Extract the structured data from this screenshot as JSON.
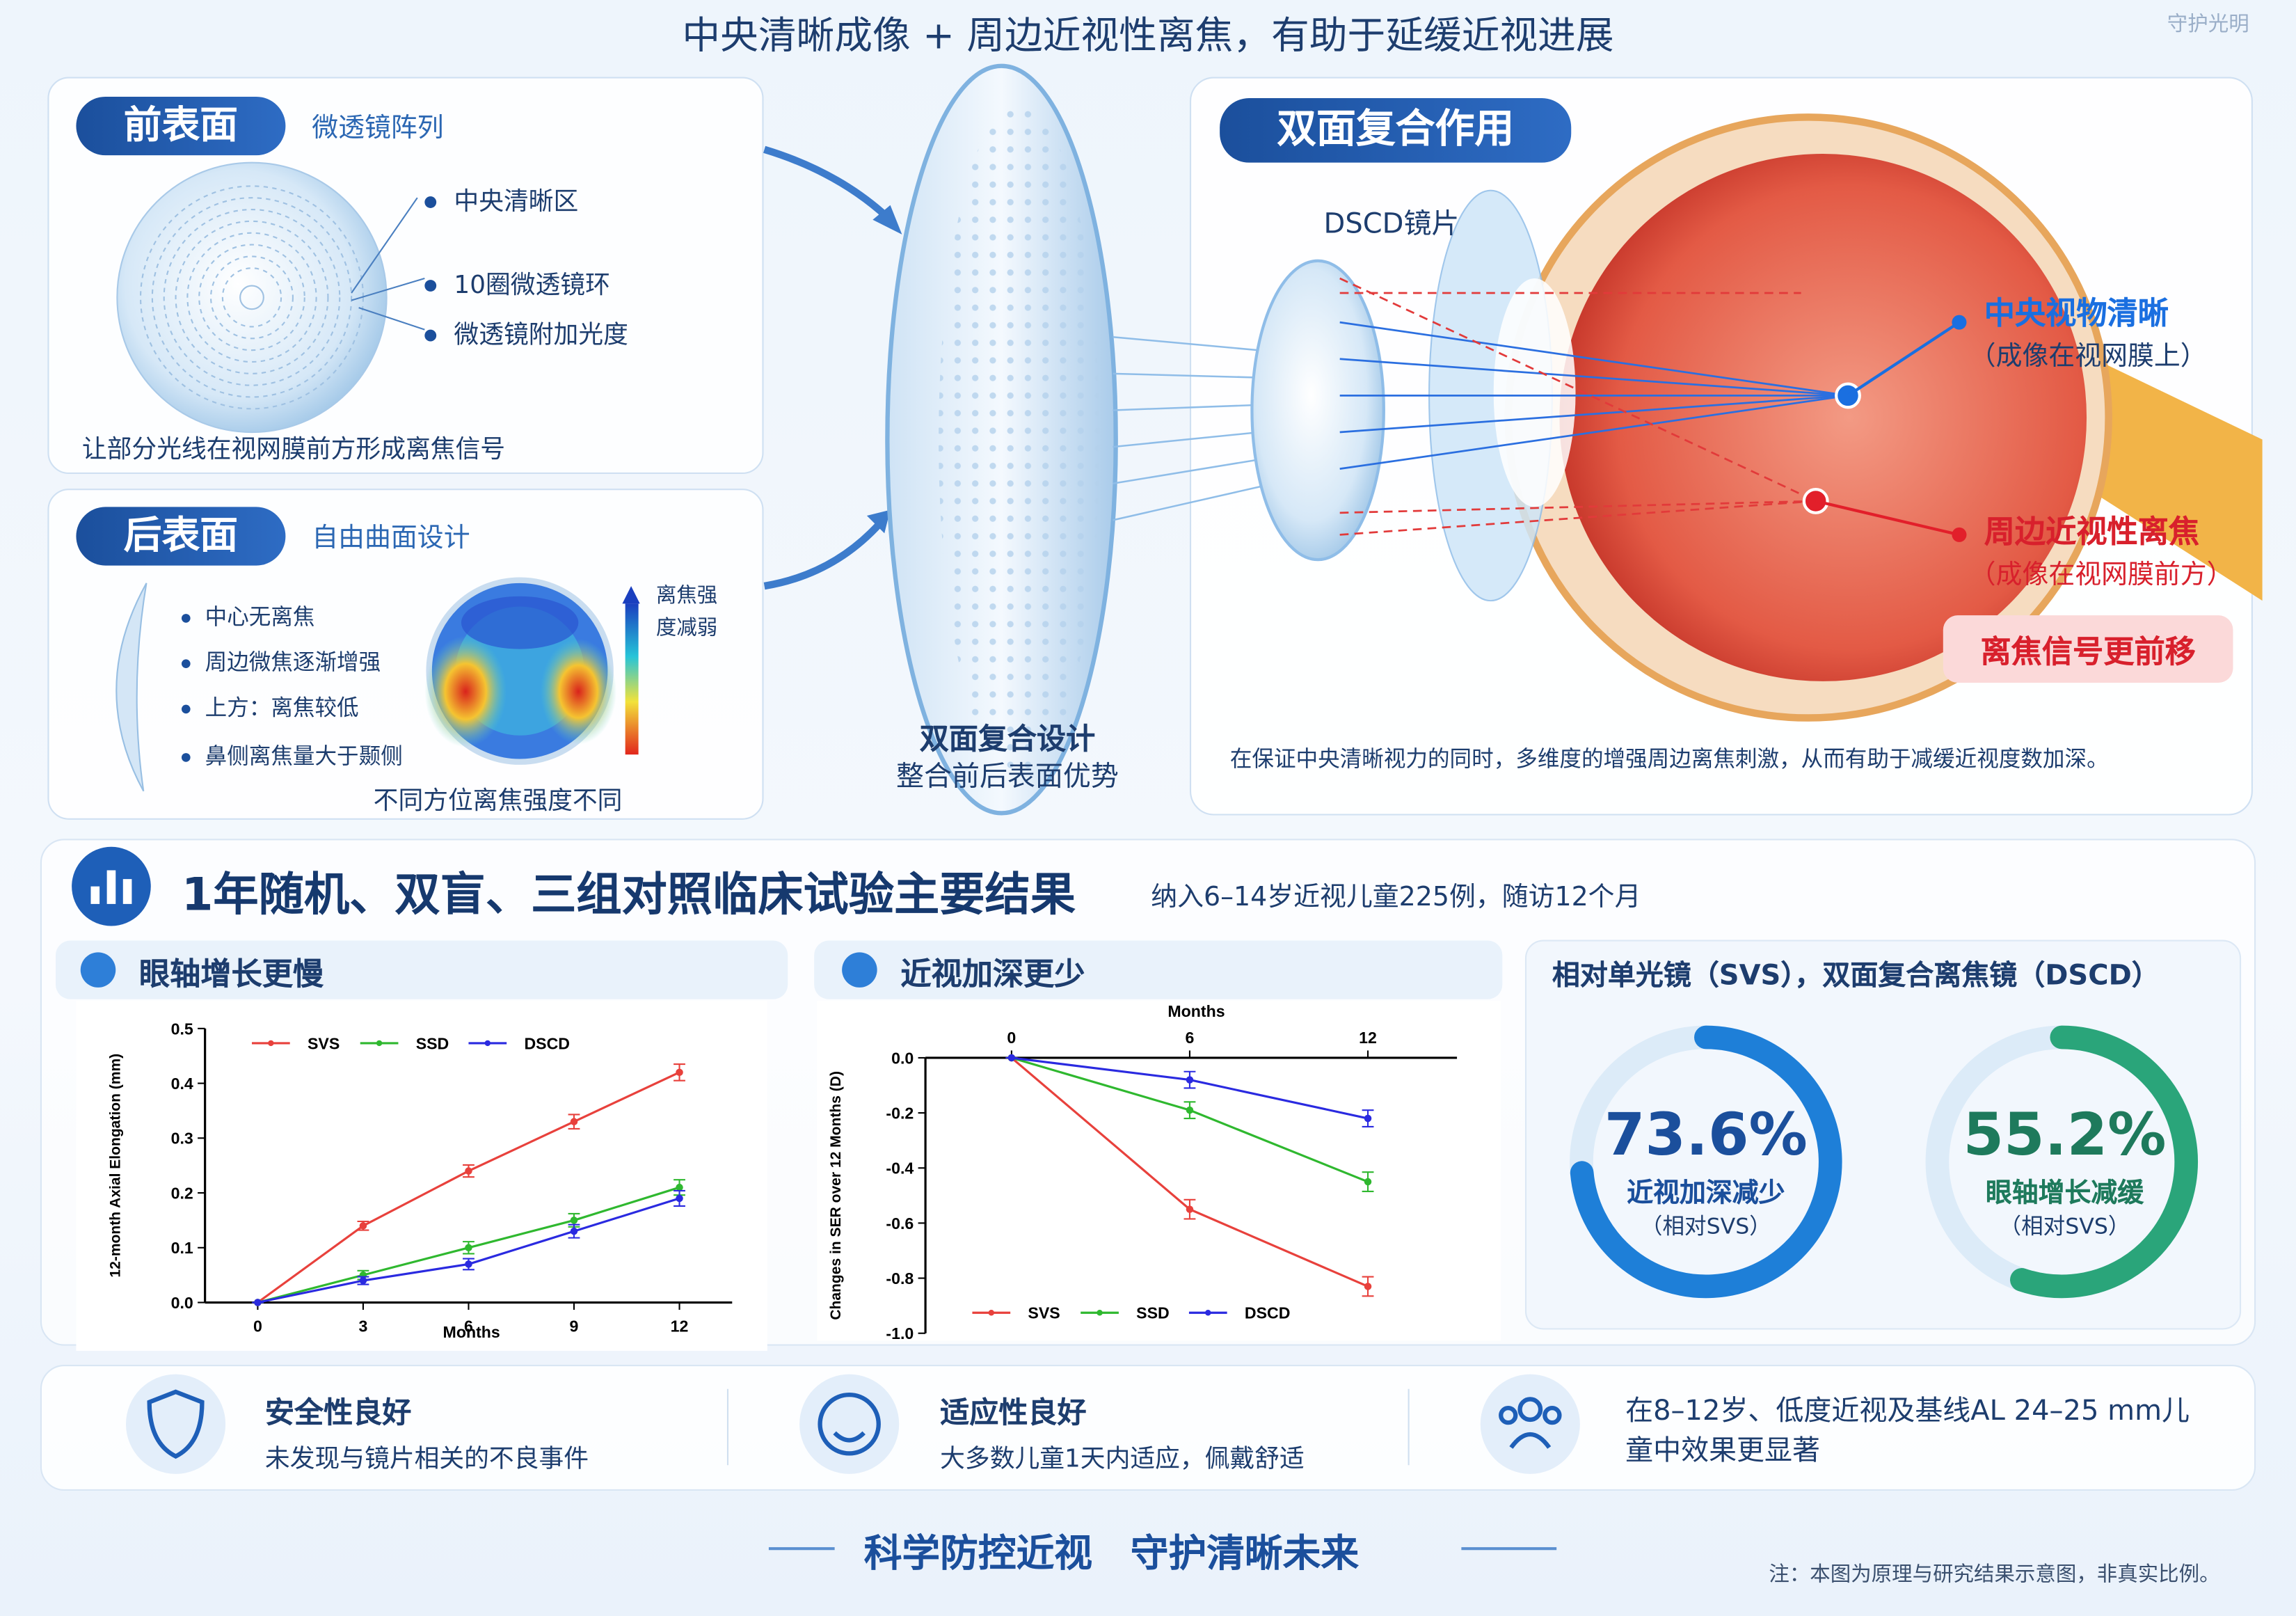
{
  "header": {
    "title": "中央清晰成像 + 周边近视性离焦，有助于延缓近视进展",
    "brand": "守护光明"
  },
  "front": {
    "tag": "前表面",
    "subtitle": "微透镜阵列",
    "bullets": [
      "中央清晰区",
      "10圈微透镜环",
      "微透镜附加光度"
    ],
    "caption": "让部分光线在视网膜前方形成离焦信号"
  },
  "back": {
    "tag": "后表面",
    "subtitle": "自由曲面设计",
    "bullets": [
      "中心无离焦",
      "周边微焦逐渐增强",
      "上方：离焦较低",
      "鼻侧离焦量大于颞侧"
    ],
    "colorbar": [
      "离焦强",
      "度减弱"
    ],
    "caption": "不同方位离焦强度不同"
  },
  "design": {
    "title": "双面复合设计",
    "subtitle": "整合前后表面优势"
  },
  "dual": {
    "tag": "双面复合作用",
    "lens": "DSCD镜片",
    "central": {
      "title": "中央视物清晰",
      "note": "（成像在视网膜上）"
    },
    "peripheral": {
      "title": "周边近视性离焦",
      "note": "（成像在视网膜前方）"
    },
    "signal": "离焦信号更前移",
    "caption": "在保证中央清晰视力的同时，多维度的增强周边离焦刺激，从而有助于减缓近视度数加深。"
  },
  "trial": {
    "title": "1年随机、双盲、三组对照临床试验主要结果",
    "subtitle": "纳入6–14岁近视儿童225例，随访12个月"
  },
  "chart_data": [
    {
      "type": "line",
      "title": "眼轴增长更慢",
      "xlabel": "Months",
      "ylabel": "12-month Axial Elongation (mm)",
      "x": [
        0,
        3,
        6,
        9,
        12
      ],
      "xlim": [
        -1.5,
        13.5
      ],
      "xticks": [
        0,
        3,
        6,
        9,
        12
      ],
      "ylim": [
        0,
        0.5
      ],
      "yticks": [
        {
          "value": 0,
          "label": "0.0"
        },
        0.1,
        0.2,
        0.3,
        0.4,
        0.5
      ],
      "x_axis_side": "bottom",
      "legend": "upper left",
      "grid": false,
      "series": [
        {
          "name": "SVS",
          "color": "#e8413c",
          "values": [
            0,
            0.14,
            0.24,
            0.33,
            0.42
          ],
          "errors": [
            0,
            0.008,
            0.011,
            0.013,
            0.015
          ]
        },
        {
          "name": "SSD",
          "color": "#2fb82f",
          "values": [
            0,
            0.05,
            0.1,
            0.15,
            0.21
          ],
          "errors": [
            0,
            0.008,
            0.011,
            0.012,
            0.014
          ]
        },
        {
          "name": "DSCD",
          "color": "#2a2ae0",
          "values": [
            0,
            0.04,
            0.07,
            0.13,
            0.19
          ],
          "errors": [
            0,
            0.007,
            0.01,
            0.012,
            0.014
          ]
        }
      ]
    },
    {
      "type": "line",
      "title": "近视加深更少",
      "xlabel": "Months",
      "ylabel": "Changes in SER over 12 Months (D)",
      "x": [
        0,
        6,
        12
      ],
      "xlim": [
        -2.9,
        15
      ],
      "xticks": [
        0,
        6,
        12
      ],
      "ylim": [
        -1,
        0
      ],
      "yticks": [
        {
          "value": 0,
          "label": "0.0"
        },
        -0.2,
        -0.4,
        -0.6,
        -0.8,
        {
          "value": -1,
          "label": "-1.0"
        }
      ],
      "x_axis_side": "top",
      "legend": "lower left",
      "grid": false,
      "series": [
        {
          "name": "SVS",
          "color": "#e8413c",
          "values": [
            0,
            -0.55,
            -0.83
          ],
          "errors": [
            0,
            0.035,
            0.035
          ]
        },
        {
          "name": "SSD",
          "color": "#2fb82f",
          "values": [
            0,
            -0.19,
            -0.45
          ],
          "errors": [
            0,
            0.03,
            0.035
          ]
        },
        {
          "name": "DSCD",
          "color": "#2a2ae0",
          "values": [
            0,
            -0.08,
            -0.22
          ],
          "errors": [
            0,
            0.03,
            0.03
          ]
        }
      ]
    }
  ],
  "relative": {
    "title": "相对单光镜（SVS），双面复合离焦镜（DSCD）",
    "items": [
      {
        "value": 73.6,
        "value_label": "73.6%",
        "label": "近视加深减少",
        "note": "（相对SVS）",
        "color": "#1e7fd8"
      },
      {
        "value": 55.2,
        "value_label": "55.2%",
        "label": "眼轴增长减缓",
        "note": "（相对SVS）",
        "color": "#2aa57a"
      }
    ]
  },
  "features": [
    {
      "title": "安全性良好",
      "text": "未发现与镜片相关的不良事件"
    },
    {
      "title": "适应性良好",
      "text": "大多数儿童1天内适应，佩戴舒适"
    },
    {
      "text": "在8–12岁、低度近视及基线AL 24–25 mm儿童中效果更显著"
    }
  ],
  "footer": {
    "slogan": "科学防控近视　守护清晰未来",
    "note": "注：本图为原理与研究结果示意图，非真实比例。"
  }
}
